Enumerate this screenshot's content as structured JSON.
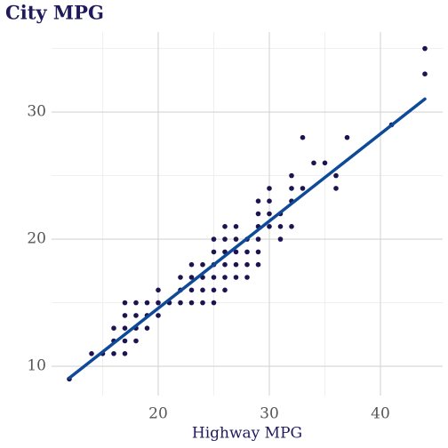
{
  "chart_data": {
    "type": "scatter",
    "title": "City MPG",
    "x_label": "Highway MPG",
    "x": [
      12,
      14,
      15,
      16,
      16,
      16,
      17,
      17,
      17,
      17,
      17,
      18,
      18,
      18,
      18,
      19,
      19,
      19,
      20,
      20,
      20,
      21,
      22,
      22,
      22,
      23,
      23,
      23,
      23,
      24,
      24,
      24,
      24,
      25,
      25,
      25,
      25,
      25,
      25,
      26,
      26,
      26,
      26,
      26,
      26,
      27,
      27,
      27,
      27,
      27,
      28,
      28,
      28,
      28,
      29,
      29,
      29,
      29,
      29,
      29,
      30,
      30,
      30,
      30,
      31,
      31,
      31,
      32,
      32,
      32,
      32,
      33,
      33,
      34,
      35,
      36,
      36,
      37,
      41,
      44,
      44
    ],
    "y": [
      9,
      11,
      11,
      11,
      12,
      13,
      11,
      12,
      13,
      14,
      15,
      12,
      13,
      14,
      15,
      13,
      14,
      15,
      14,
      15,
      16,
      15,
      15,
      16,
      17,
      15,
      16,
      17,
      18,
      15,
      16,
      17,
      18,
      15,
      16,
      17,
      18,
      19,
      20,
      16,
      17,
      18,
      19,
      20,
      21,
      17,
      18,
      19,
      20,
      21,
      17,
      18,
      19,
      20,
      18,
      19,
      20,
      21,
      22,
      23,
      21,
      22,
      23,
      24,
      20,
      21,
      22,
      21,
      23,
      24,
      25,
      24,
      28,
      26,
      26,
      24,
      25,
      28,
      29,
      33,
      35
    ],
    "color": "#1b1450",
    "regression_line": {
      "x": [
        12,
        44
      ],
      "y": [
        9.08,
        31.03
      ],
      "color": "#0e4a98"
    },
    "xlim": [
      10.4,
      45.6
    ],
    "xticks": [
      20,
      30,
      40
    ],
    "minor_xticks": [
      15,
      25,
      35
    ],
    "ylim": [
      7.7,
      36.3
    ],
    "yticks": [
      10,
      20,
      30
    ],
    "minor_yticks": [
      15,
      25,
      35
    ],
    "grid": true
  }
}
